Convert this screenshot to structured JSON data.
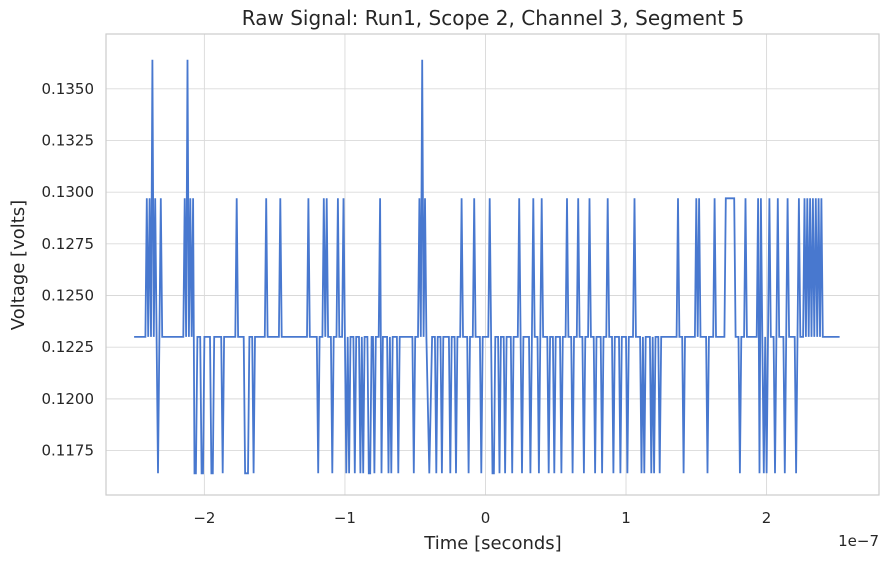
{
  "chart_data": {
    "type": "line",
    "title": "Raw Signal: Run1, Scope 2, Channel 3, Segment 5",
    "xlabel": "Time [seconds]",
    "ylabel": "Voltage [volts]",
    "x_offset_label": "1e−7",
    "x_scale": 1e-07,
    "xlim": [
      -2.7,
      2.8
    ],
    "ylim": [
      0.11535,
      0.13765
    ],
    "x_ticks": [
      -2,
      -1,
      0,
      1,
      2
    ],
    "x_tick_labels": [
      "−2",
      "−1",
      "0",
      "1",
      "2"
    ],
    "y_ticks": [
      0.1175,
      0.12,
      0.1225,
      0.125,
      0.1275,
      0.13,
      0.1325,
      0.135
    ],
    "y_tick_labels": [
      "0.1175",
      "0.1200",
      "0.1225",
      "0.1250",
      "0.1275",
      "0.1300",
      "0.1325",
      "0.1350"
    ],
    "grid": true,
    "colors": {
      "line": "#4878cf",
      "grid": "#d9d9d9",
      "frame": "#cccccc"
    },
    "levels": {
      "base": 0.123,
      "high": 0.1297,
      "low": 0.1164,
      "peak": 0.1364
    },
    "series": [
      {
        "points": [
          [
            -2.5,
            0.123
          ],
          [
            -2.42,
            0.123
          ],
          [
            -2.41,
            0.1297
          ],
          [
            -2.4,
            0.123
          ],
          [
            -2.39,
            0.1297
          ],
          [
            -2.38,
            0.123
          ],
          [
            -2.37,
            0.1364
          ],
          [
            -2.36,
            0.123
          ],
          [
            -2.35,
            0.1297
          ],
          [
            -2.34,
            0.123
          ],
          [
            -2.33,
            0.1164
          ],
          [
            -2.32,
            0.123
          ],
          [
            -2.31,
            0.1297
          ],
          [
            -2.3,
            0.123
          ],
          [
            -2.15,
            0.123
          ],
          [
            -2.14,
            0.1297
          ],
          [
            -2.13,
            0.123
          ],
          [
            -2.12,
            0.1364
          ],
          [
            -2.11,
            0.123
          ],
          [
            -2.1,
            0.1297
          ],
          [
            -2.09,
            0.123
          ],
          [
            -2.08,
            0.1297
          ],
          [
            -2.07,
            0.1164
          ],
          [
            -2.06,
            0.1164
          ],
          [
            -2.05,
            0.123
          ],
          [
            -2.03,
            0.123
          ],
          [
            -2.02,
            0.1164
          ],
          [
            -2.01,
            0.1164
          ],
          [
            -2.0,
            0.123
          ],
          [
            -1.96,
            0.123
          ],
          [
            -1.95,
            0.1164
          ],
          [
            -1.94,
            0.1164
          ],
          [
            -1.93,
            0.123
          ],
          [
            -1.88,
            0.123
          ],
          [
            -1.87,
            0.1164
          ],
          [
            -1.86,
            0.123
          ],
          [
            -1.78,
            0.123
          ],
          [
            -1.77,
            0.1297
          ],
          [
            -1.76,
            0.123
          ],
          [
            -1.72,
            0.123
          ],
          [
            -1.71,
            0.1164
          ],
          [
            -1.7,
            0.1164
          ],
          [
            -1.69,
            0.1164
          ],
          [
            -1.68,
            0.123
          ],
          [
            -1.66,
            0.123
          ],
          [
            -1.65,
            0.1164
          ],
          [
            -1.64,
            0.123
          ],
          [
            -1.57,
            0.123
          ],
          [
            -1.56,
            0.1297
          ],
          [
            -1.55,
            0.123
          ],
          [
            -1.47,
            0.123
          ],
          [
            -1.46,
            0.1297
          ],
          [
            -1.45,
            0.123
          ],
          [
            -1.27,
            0.123
          ],
          [
            -1.26,
            0.1297
          ],
          [
            -1.25,
            0.123
          ],
          [
            -1.2,
            0.123
          ],
          [
            -1.19,
            0.1164
          ],
          [
            -1.18,
            0.123
          ],
          [
            -1.16,
            0.123
          ],
          [
            -1.15,
            0.1297
          ],
          [
            -1.14,
            0.123
          ],
          [
            -1.13,
            0.1297
          ],
          [
            -1.12,
            0.123
          ],
          [
            -1.1,
            0.123
          ],
          [
            -1.09,
            0.1164
          ],
          [
            -1.08,
            0.123
          ],
          [
            -1.06,
            0.123
          ],
          [
            -1.05,
            0.1297
          ],
          [
            -1.04,
            0.123
          ],
          [
            -1.02,
            0.123
          ],
          [
            -1.01,
            0.1297
          ],
          [
            -1.0,
            0.123
          ],
          [
            -0.99,
            0.1164
          ],
          [
            -0.98,
            0.123
          ],
          [
            -0.97,
            0.1164
          ],
          [
            -0.96,
            0.123
          ],
          [
            -0.94,
            0.123
          ],
          [
            -0.93,
            0.1164
          ],
          [
            -0.92,
            0.123
          ],
          [
            -0.9,
            0.123
          ],
          [
            -0.89,
            0.1164
          ],
          [
            -0.88,
            0.123
          ],
          [
            -0.87,
            0.1164
          ],
          [
            -0.86,
            0.123
          ],
          [
            -0.84,
            0.123
          ],
          [
            -0.83,
            0.1164
          ],
          [
            -0.82,
            0.1164
          ],
          [
            -0.81,
            0.123
          ],
          [
            -0.8,
            0.123
          ],
          [
            -0.79,
            0.1164
          ],
          [
            -0.78,
            0.123
          ],
          [
            -0.76,
            0.123
          ],
          [
            -0.75,
            0.1297
          ],
          [
            -0.74,
            0.1164
          ],
          [
            -0.73,
            0.123
          ],
          [
            -0.7,
            0.123
          ],
          [
            -0.69,
            0.1164
          ],
          [
            -0.68,
            0.123
          ],
          [
            -0.67,
            0.1164
          ],
          [
            -0.66,
            0.123
          ],
          [
            -0.63,
            0.123
          ],
          [
            -0.62,
            0.1164
          ],
          [
            -0.61,
            0.123
          ],
          [
            -0.52,
            0.123
          ],
          [
            -0.51,
            0.1164
          ],
          [
            -0.5,
            0.123
          ],
          [
            -0.48,
            0.123
          ],
          [
            -0.47,
            0.1297
          ],
          [
            -0.46,
            0.123
          ],
          [
            -0.45,
            0.1364
          ],
          [
            -0.44,
            0.123
          ],
          [
            -0.43,
            0.1297
          ],
          [
            -0.42,
            0.123
          ],
          [
            -0.4,
            0.1164
          ],
          [
            -0.38,
            0.123
          ],
          [
            -0.36,
            0.123
          ],
          [
            -0.35,
            0.1164
          ],
          [
            -0.34,
            0.123
          ],
          [
            -0.32,
            0.123
          ],
          [
            -0.31,
            0.1164
          ],
          [
            -0.3,
            0.123
          ],
          [
            -0.26,
            0.123
          ],
          [
            -0.25,
            0.1164
          ],
          [
            -0.24,
            0.123
          ],
          [
            -0.22,
            0.123
          ],
          [
            -0.21,
            0.1164
          ],
          [
            -0.2,
            0.123
          ],
          [
            -0.18,
            0.123
          ],
          [
            -0.17,
            0.1297
          ],
          [
            -0.16,
            0.123
          ],
          [
            -0.13,
            0.123
          ],
          [
            -0.12,
            0.1164
          ],
          [
            -0.11,
            0.123
          ],
          [
            -0.09,
            0.123
          ],
          [
            -0.08,
            0.1297
          ],
          [
            -0.07,
            0.123
          ],
          [
            -0.04,
            0.123
          ],
          [
            -0.03,
            0.1164
          ],
          [
            -0.02,
            0.123
          ],
          [
            0.02,
            0.123
          ],
          [
            0.03,
            0.1297
          ],
          [
            0.04,
            0.123
          ],
          [
            0.05,
            0.1164
          ],
          [
            0.06,
            0.1164
          ],
          [
            0.07,
            0.123
          ],
          [
            0.09,
            0.123
          ],
          [
            0.1,
            0.1164
          ],
          [
            0.11,
            0.123
          ],
          [
            0.13,
            0.123
          ],
          [
            0.14,
            0.1164
          ],
          [
            0.15,
            0.123
          ],
          [
            0.18,
            0.123
          ],
          [
            0.19,
            0.1164
          ],
          [
            0.2,
            0.123
          ],
          [
            0.23,
            0.123
          ],
          [
            0.24,
            0.1297
          ],
          [
            0.25,
            0.123
          ],
          [
            0.26,
            0.1164
          ],
          [
            0.27,
            0.123
          ],
          [
            0.31,
            0.123
          ],
          [
            0.32,
            0.1164
          ],
          [
            0.33,
            0.123
          ],
          [
            0.34,
            0.1297
          ],
          [
            0.35,
            0.123
          ],
          [
            0.37,
            0.123
          ],
          [
            0.38,
            0.1164
          ],
          [
            0.39,
            0.123
          ],
          [
            0.4,
            0.1297
          ],
          [
            0.41,
            0.123
          ],
          [
            0.44,
            0.123
          ],
          [
            0.45,
            0.1164
          ],
          [
            0.46,
            0.123
          ],
          [
            0.48,
            0.123
          ],
          [
            0.49,
            0.1164
          ],
          [
            0.5,
            0.123
          ],
          [
            0.53,
            0.123
          ],
          [
            0.54,
            0.1164
          ],
          [
            0.55,
            0.123
          ],
          [
            0.57,
            0.123
          ],
          [
            0.58,
            0.1297
          ],
          [
            0.59,
            0.123
          ],
          [
            0.61,
            0.123
          ],
          [
            0.62,
            0.1164
          ],
          [
            0.63,
            0.123
          ],
          [
            0.65,
            0.123
          ],
          [
            0.66,
            0.1297
          ],
          [
            0.67,
            0.123
          ],
          [
            0.69,
            0.123
          ],
          [
            0.7,
            0.1164
          ],
          [
            0.71,
            0.123
          ],
          [
            0.73,
            0.123
          ],
          [
            0.74,
            0.1297
          ],
          [
            0.75,
            0.123
          ],
          [
            0.77,
            0.123
          ],
          [
            0.78,
            0.1164
          ],
          [
            0.79,
            0.123
          ],
          [
            0.82,
            0.123
          ],
          [
            0.83,
            0.1164
          ],
          [
            0.84,
            0.123
          ],
          [
            0.86,
            0.123
          ],
          [
            0.87,
            0.1297
          ],
          [
            0.88,
            0.123
          ],
          [
            0.9,
            0.123
          ],
          [
            0.91,
            0.1164
          ],
          [
            0.92,
            0.123
          ],
          [
            0.95,
            0.123
          ],
          [
            0.96,
            0.1164
          ],
          [
            0.97,
            0.123
          ],
          [
            1.0,
            0.123
          ],
          [
            1.01,
            0.1164
          ],
          [
            1.02,
            0.123
          ],
          [
            1.05,
            0.123
          ],
          [
            1.06,
            0.1297
          ],
          [
            1.07,
            0.123
          ],
          [
            1.1,
            0.123
          ],
          [
            1.11,
            0.1164
          ],
          [
            1.12,
            0.123
          ],
          [
            1.13,
            0.1164
          ],
          [
            1.14,
            0.123
          ],
          [
            1.17,
            0.123
          ],
          [
            1.18,
            0.1164
          ],
          [
            1.19,
            0.123
          ],
          [
            1.2,
            0.1164
          ],
          [
            1.21,
            0.123
          ],
          [
            1.23,
            0.123
          ],
          [
            1.24,
            0.1164
          ],
          [
            1.25,
            0.123
          ],
          [
            1.36,
            0.123
          ],
          [
            1.37,
            0.1297
          ],
          [
            1.38,
            0.123
          ],
          [
            1.4,
            0.123
          ],
          [
            1.41,
            0.1164
          ],
          [
            1.42,
            0.123
          ],
          [
            1.49,
            0.123
          ],
          [
            1.5,
            0.1297
          ],
          [
            1.51,
            0.123
          ],
          [
            1.52,
            0.1297
          ],
          [
            1.53,
            0.123
          ],
          [
            1.57,
            0.123
          ],
          [
            1.58,
            0.1164
          ],
          [
            1.59,
            0.123
          ],
          [
            1.62,
            0.123
          ],
          [
            1.63,
            0.1297
          ],
          [
            1.64,
            0.123
          ],
          [
            1.7,
            0.123
          ],
          [
            1.71,
            0.1297
          ],
          [
            1.77,
            0.1297
          ],
          [
            1.78,
            0.123
          ],
          [
            1.8,
            0.123
          ],
          [
            1.81,
            0.1164
          ],
          [
            1.82,
            0.123
          ],
          [
            1.84,
            0.123
          ],
          [
            1.85,
            0.1297
          ],
          [
            1.86,
            0.123
          ],
          [
            1.93,
            0.123
          ],
          [
            1.94,
            0.1297
          ],
          [
            1.95,
            0.1164
          ],
          [
            1.96,
            0.1297
          ],
          [
            1.97,
            0.123
          ],
          [
            1.98,
            0.1164
          ],
          [
            1.99,
            0.123
          ],
          [
            2.0,
            0.1164
          ],
          [
            2.01,
            0.123
          ],
          [
            2.02,
            0.1297
          ],
          [
            2.03,
            0.123
          ],
          [
            2.05,
            0.123
          ],
          [
            2.06,
            0.1164
          ],
          [
            2.07,
            0.123
          ],
          [
            2.08,
            0.1297
          ],
          [
            2.09,
            0.123
          ],
          [
            2.12,
            0.123
          ],
          [
            2.13,
            0.1164
          ],
          [
            2.14,
            0.123
          ],
          [
            2.15,
            0.1297
          ],
          [
            2.16,
            0.123
          ],
          [
            2.2,
            0.123
          ],
          [
            2.21,
            0.1164
          ],
          [
            2.22,
            0.123
          ],
          [
            2.23,
            0.1297
          ],
          [
            2.24,
            0.123
          ],
          [
            2.26,
            0.123
          ],
          [
            2.27,
            0.1297
          ],
          [
            2.28,
            0.123
          ],
          [
            2.29,
            0.1297
          ],
          [
            2.3,
            0.123
          ],
          [
            2.31,
            0.1297
          ],
          [
            2.32,
            0.123
          ],
          [
            2.33,
            0.1297
          ],
          [
            2.34,
            0.123
          ],
          [
            2.35,
            0.1297
          ],
          [
            2.36,
            0.123
          ],
          [
            2.37,
            0.1297
          ],
          [
            2.38,
            0.123
          ],
          [
            2.39,
            0.1297
          ],
          [
            2.4,
            0.123
          ],
          [
            2.52,
            0.123
          ]
        ]
      }
    ]
  }
}
